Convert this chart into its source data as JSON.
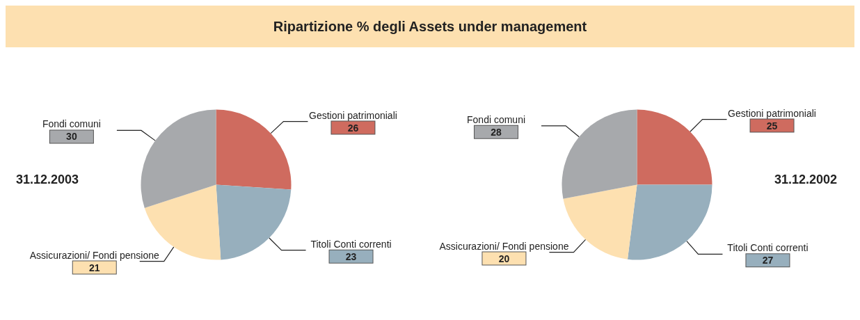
{
  "chart_data": [
    {
      "type": "pie",
      "title": "Ripartizione % degli Assets under management",
      "subtitle": "31.12.2003",
      "categories": [
        "Gestioni patrimoniali",
        "Titoli Conti correnti",
        "Assicurazioni/ Fondi pensione",
        "Fondi comuni"
      ],
      "values": [
        26,
        23,
        21,
        30
      ],
      "colors": [
        "#cf6b5f",
        "#97afbd",
        "#fde0b0",
        "#a7a9ac"
      ],
      "data_labels": true
    },
    {
      "type": "pie",
      "subtitle": "31.12.2002",
      "categories": [
        "Gestioni patrimoniali",
        "Titoli Conti correnti",
        "Assicurazioni/ Fondi pensione",
        "Fondi comuni"
      ],
      "values": [
        25,
        27,
        20,
        28
      ],
      "colors": [
        "#cf6b5f",
        "#97afbd",
        "#fde0b0",
        "#a7a9ac"
      ],
      "data_labels": true
    }
  ]
}
